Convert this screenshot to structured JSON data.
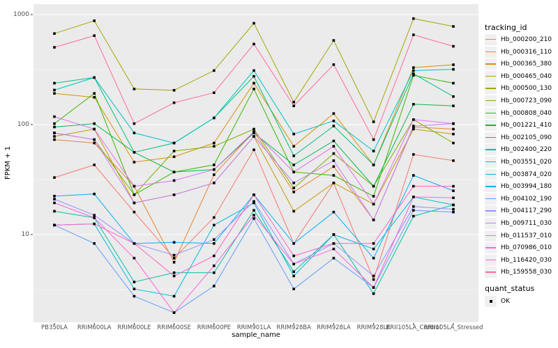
{
  "chart_data": {
    "type": "line",
    "title": "",
    "xlabel": "sample_name",
    "ylabel": "FPKM + 1",
    "y_scale": "log10",
    "grid": true,
    "legend_position": "right",
    "point_marker": "black-square",
    "y_ticks": [
      10,
      100,
      1000
    ],
    "y_tick_labels": [
      "10",
      "100",
      "1000"
    ],
    "ylim": [
      1.6,
      1250
    ],
    "x": [
      "PB350LA",
      "RRIM600LA",
      "RRIM600LE",
      "RRIM600SE",
      "RRIM600PE",
      "RRIM901LA",
      "RRIM928BA",
      "RRIM928LA",
      "RRIM928LE",
      "RRII105LA_Control",
      "RRII105LA_Stressed"
    ],
    "legend_tracking_title": "tracking_id",
    "legend_quant_title": "quant_status",
    "quant_status_label": "OK",
    "series": [
      {
        "name": "Hb_000200_210",
        "color": "#F8766D",
        "values": [
          33,
          43,
          16,
          6.1,
          14.3,
          59,
          8.3,
          29.5,
          3.9,
          53.5,
          47
        ]
      },
      {
        "name": "Hb_000316_110",
        "color": "#EA8331",
        "values": [
          73,
          68,
          27.5,
          5.6,
          35,
          86,
          24.4,
          41.5,
          13.6,
          95,
          91
        ]
      },
      {
        "name": "Hb_000365_380",
        "color": "#D89000",
        "values": [
          192,
          177,
          45.5,
          51,
          68,
          238,
          63.5,
          126,
          43,
          330,
          350
        ]
      },
      {
        "name": "Hb_000465_040",
        "color": "#C09B00",
        "values": [
          78,
          91,
          19.4,
          23,
          29.5,
          78,
          16.3,
          29.5,
          18.9,
          91,
          82
        ]
      },
      {
        "name": "Hb_000500_130",
        "color": "#A3A500",
        "values": [
          673,
          880,
          211,
          205,
          310,
          835,
          160,
          582,
          106,
          920,
          780
        ]
      },
      {
        "name": "Hb_000723_090",
        "color": "#7CAE00",
        "values": [
          84,
          73,
          23,
          57.5,
          63.5,
          91,
          26.5,
          54.5,
          27.5,
          111,
          68
        ]
      },
      {
        "name": "Hb_000808_040",
        "color": "#39B600",
        "values": [
          102,
          192,
          23,
          37,
          43,
          211,
          37,
          34.5,
          22.3,
          280,
          238
        ]
      },
      {
        "name": "Hb_001221_410",
        "color": "#00BB4E",
        "values": [
          95,
          102,
          56,
          37,
          39,
          84,
          43,
          71,
          27.5,
          153,
          148
        ]
      },
      {
        "name": "Hb_002105_090",
        "color": "#00BF7D",
        "values": [
          238,
          268,
          56,
          68,
          115,
          275,
          52,
          97,
          43,
          290,
          180
        ]
      },
      {
        "name": "Hb_002400_220",
        "color": "#00C1A3",
        "values": [
          16.3,
          14.2,
          3.7,
          4.5,
          4.5,
          16.6,
          4.6,
          10,
          2.9,
          14.7,
          18.6
        ]
      },
      {
        "name": "Hb_003551_020",
        "color": "#00BFC4",
        "values": [
          206,
          268,
          84,
          68,
          115,
          310,
          82,
          108,
          57.5,
          310,
          318
        ]
      },
      {
        "name": "Hb_003874_020",
        "color": "#00BBDC",
        "values": [
          12.2,
          12.5,
          3.2,
          2.75,
          12.2,
          19.4,
          4.2,
          10,
          7.4,
          22,
          18.6
        ]
      },
      {
        "name": "Hb_003994_180",
        "color": "#00B0F6",
        "values": [
          22.4,
          23.4,
          8.3,
          8.5,
          8.3,
          23,
          8.3,
          16,
          6.1,
          34.5,
          25
        ]
      },
      {
        "name": "Hb_004102_190",
        "color": "#619CFF",
        "values": [
          12.2,
          8.3,
          2.75,
          1.95,
          3.4,
          14,
          3.2,
          6.1,
          3.3,
          16.6,
          16
        ]
      },
      {
        "name": "Hb_004117_290",
        "color": "#9590FF",
        "values": [
          21,
          15,
          8.3,
          6.5,
          9,
          20,
          5.4,
          8.3,
          4.2,
          18,
          17
        ]
      },
      {
        "name": "Hb_009711_030",
        "color": "#C77CFF",
        "values": [
          84,
          73,
          19.4,
          23,
          29.5,
          78,
          29.5,
          47,
          13.6,
          97,
          102
        ]
      },
      {
        "name": "Hb_011537_010",
        "color": "#E76BF3",
        "values": [
          118,
          91,
          27.5,
          31,
          39,
          86,
          37,
          63.5,
          18.9,
          111,
          102
        ]
      },
      {
        "name": "Hb_070986_010",
        "color": "#FA62DB",
        "values": [
          19.4,
          14.2,
          6.1,
          1.95,
          5.2,
          15,
          5.4,
          7.4,
          3.3,
          22,
          21.6
        ]
      },
      {
        "name": "Hb_116420_030",
        "color": "#FF61C7",
        "values": [
          12.2,
          12.5,
          8.3,
          4.2,
          6.4,
          23,
          6.4,
          8.3,
          8.3,
          27.5,
          27.5
        ]
      },
      {
        "name": "Hb_159558_030",
        "color": "#FF689F",
        "values": [
          504,
          644,
          102,
          158,
          195,
          540,
          148,
          351,
          73,
          655,
          515
        ]
      }
    ],
    "panel_background": "#EBEBEB",
    "gridline_color": "#FFFFFF",
    "tick_text_color": "#4D4D4D"
  }
}
